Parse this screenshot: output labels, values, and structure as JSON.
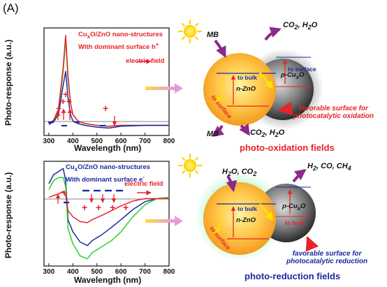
{
  "panel_label": "(A)",
  "chart_data": [
    {
      "type": "line",
      "xlabel": "Wavelength (nm)",
      "ylabel": "Photo-response (a.u.)",
      "xlim": [
        280,
        800
      ],
      "x_ticks": [
        "300",
        "400",
        "500",
        "600",
        "700",
        "800"
      ],
      "legend": {
        "line1": "Cu",
        "line1_sub": "x",
        "line1_rest": "O/ZnO nano-structures",
        "line2_pre": "With dominant surface h",
        "line2_sup": "+",
        "field": "electric field"
      },
      "series": [
        {
          "color": "#2bd12b",
          "x": [
            300,
            320,
            340,
            360,
            370,
            380,
            390,
            400,
            420,
            450,
            500,
            550,
            600,
            700,
            800
          ],
          "y": [
            0.02,
            0.05,
            0.15,
            0.6,
            0.95,
            0.5,
            0.25,
            0.12,
            0.05,
            0.02,
            0.0,
            -0.01,
            0.0,
            0.0,
            0.0
          ]
        },
        {
          "color": "#e8232a",
          "x": [
            300,
            320,
            340,
            360,
            370,
            380,
            390,
            400,
            420,
            450,
            500,
            550,
            600,
            700,
            800
          ],
          "y": [
            0.02,
            0.06,
            0.18,
            0.65,
            1.0,
            0.55,
            0.25,
            0.12,
            0.05,
            0.02,
            0.0,
            -0.01,
            0.0,
            0.0,
            0.0
          ]
        },
        {
          "color": "#1a2aa0",
          "x": [
            300,
            320,
            340,
            360,
            370,
            380,
            390,
            400,
            420,
            450,
            500,
            550,
            600,
            700,
            800
          ],
          "y": [
            0.01,
            0.04,
            0.12,
            0.45,
            0.6,
            0.3,
            0.12,
            0.05,
            0.02,
            0.0,
            -0.02,
            -0.03,
            -0.01,
            0.0,
            0.0
          ]
        }
      ]
    },
    {
      "type": "line",
      "xlabel": "Wavelength (nm)",
      "ylabel": "Photo-response (a.u.)",
      "xlim": [
        280,
        800
      ],
      "x_ticks": [
        "300",
        "400",
        "500",
        "600",
        "700",
        "800"
      ],
      "legend": {
        "line1": "Cu",
        "line1_sub": "x",
        "line1_rest": "O/ZnO nano-structures",
        "line2_pre": "With dominant surface e",
        "line2_sup": "-",
        "field": "electric field"
      },
      "series": [
        {
          "color": "#1a2aa0",
          "x": [
            300,
            320,
            340,
            360,
            370,
            380,
            400,
            430,
            460,
            480,
            520,
            560,
            600,
            650,
            700,
            750,
            800
          ],
          "y": [
            0.25,
            0.4,
            0.45,
            0.5,
            0.3,
            -0.35,
            -0.55,
            -0.72,
            -0.78,
            -0.7,
            -0.6,
            -0.48,
            -0.35,
            -0.18,
            -0.05,
            0.0,
            0.02
          ]
        },
        {
          "color": "#2bd12b",
          "x": [
            300,
            320,
            340,
            360,
            370,
            380,
            400,
            430,
            460,
            480,
            520,
            560,
            600,
            650,
            700,
            750,
            800
          ],
          "y": [
            0.15,
            0.3,
            0.35,
            0.35,
            0.2,
            -0.5,
            -0.75,
            -0.95,
            -1.0,
            -0.9,
            -0.8,
            -0.7,
            -0.55,
            -0.3,
            -0.1,
            0.0,
            0.02
          ]
        },
        {
          "color": "#e8232a",
          "x": [
            300,
            320,
            340,
            360,
            370,
            380,
            400,
            430,
            460,
            480,
            520,
            560,
            600,
            650,
            700,
            750,
            800
          ],
          "y": [
            0.02,
            0.05,
            0.08,
            0.12,
            0.05,
            -0.2,
            -0.3,
            -0.38,
            -0.4,
            -0.35,
            -0.28,
            -0.2,
            -0.12,
            -0.04,
            0.0,
            0.0,
            0.0
          ]
        }
      ]
    }
  ],
  "diagram_top": {
    "mb": "MB",
    "co2_h2o_top": "CO",
    "co2_h2o_top_sub": "2",
    "co2_h2o_top_rest": ", H",
    "co2_h2o_top_sub2": "2",
    "co2_h2o_top_end": "O",
    "to_bulk": "to bulk",
    "to_surface_right": "to surface",
    "p_cuxo": "p-Cu",
    "p_cuxo_sub": "x",
    "p_cuxo_end": "O",
    "n_zno": "n-ZnO",
    "to_surface_left": "to surface",
    "mb_bottom": "MB",
    "co2_h2o_bottom": "CO",
    "co2_h2o_bottom_sub": "2",
    "co2_h2o_bottom_rest": ", H",
    "co2_h2o_bottom_sub2": "2",
    "co2_h2o_bottom_end": "O",
    "favorable_line1": "favorable surface for",
    "favorable_line2": "photocatalytic oxidation",
    "caption": "photo-oxidation fields"
  },
  "diagram_bottom": {
    "h2o_co2": "H",
    "h2o_co2_sub": "2",
    "h2o_co2_rest": "O, CO",
    "h2o_co2_sub2": "2",
    "products": "H",
    "products_sub": "2",
    "products_rest": ", CO, CH",
    "products_sub2": "4",
    "to_bulk": "to bulk",
    "p_cuxo": "p-Cu",
    "p_cuxo_sub": "x",
    "p_cuxo_end": "O",
    "to_bulk_right": "to bulk",
    "n_zno": "n-ZnO",
    "to_surface": "to surface",
    "favorable_line1": "favorable surface for",
    "favorable_line2": "photocatalytic reduction",
    "caption": "photo-reduction fields"
  },
  "colors": {
    "red": "#e8232a",
    "blue": "#1a2aa0",
    "green": "#2bd12b",
    "magenta": "#8a2a8a"
  },
  "icons": [
    "sun-icon",
    "sun-icon",
    "gradient-arrow-icon",
    "gradient-arrow-icon"
  ]
}
